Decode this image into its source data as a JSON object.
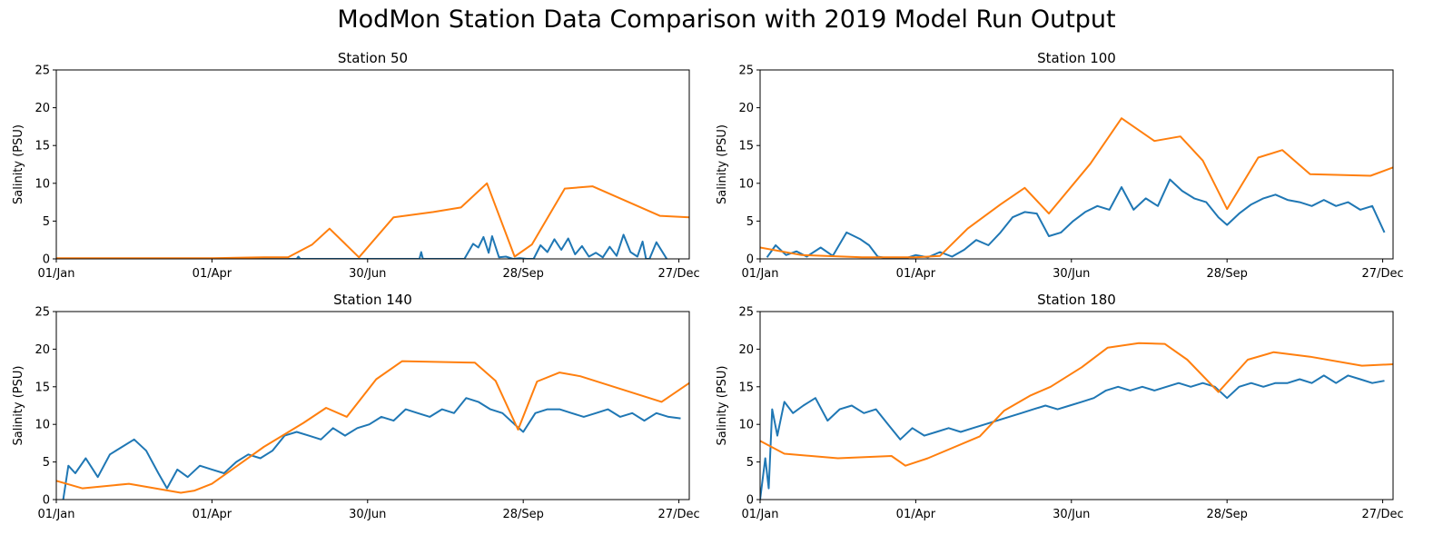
{
  "figure": {
    "title": "ModMon Station Data Comparison with 2019 Model Run Output"
  },
  "colors": {
    "observed": "#1f77b4",
    "model": "#ff7f0e",
    "axes": "#000000",
    "background": "#ffffff"
  },
  "chart_data": [
    {
      "type": "line",
      "title": "Station 50",
      "xlabel": "",
      "ylabel": "Salinity (PSU)",
      "xlim": [
        "2019-01-01",
        "2020-01-02"
      ],
      "ylim": [
        0,
        25
      ],
      "yticks": [
        0,
        5,
        10,
        15,
        20,
        25
      ],
      "xtick_labels": [
        "01/Jan",
        "01/Apr",
        "30/Jun",
        "28/Sep",
        "27/Dec"
      ],
      "grid": false,
      "series": [
        {
          "color": "#1f77b4",
          "x": [
            "2019-01-01",
            "2019-02-10",
            "2019-03-20",
            "2019-04-25",
            "2019-05-20",
            "2019-05-21",
            "2019-05-22",
            "2019-06-20",
            "2019-07-10",
            "2019-07-30",
            "2019-07-31",
            "2019-08-01",
            "2019-08-25",
            "2019-08-30",
            "2019-09-02",
            "2019-09-05",
            "2019-09-08",
            "2019-09-10",
            "2019-09-14",
            "2019-09-18",
            "2019-09-22",
            "2019-09-26",
            "2019-09-30",
            "2019-10-04",
            "2019-10-08",
            "2019-10-12",
            "2019-10-16",
            "2019-10-20",
            "2019-10-24",
            "2019-10-28",
            "2019-11-01",
            "2019-11-05",
            "2019-11-09",
            "2019-11-13",
            "2019-11-17",
            "2019-11-21",
            "2019-11-25",
            "2019-11-29",
            "2019-12-03",
            "2019-12-06",
            "2019-12-08",
            "2019-12-10",
            "2019-12-14",
            "2019-12-20"
          ],
          "y": [
            0,
            0,
            0,
            0,
            0,
            0.3,
            0,
            0,
            0,
            0,
            0.9,
            0,
            0,
            2.0,
            1.5,
            2.9,
            0.8,
            3.0,
            0.2,
            0.3,
            0,
            0.1,
            0,
            0,
            1.8,
            0.9,
            2.6,
            1.2,
            2.7,
            0.6,
            1.7,
            0.3,
            0.8,
            0.2,
            1.6,
            0.4,
            3.2,
            0.9,
            0.3,
            2.3,
            0,
            0,
            2.2,
            0
          ]
        },
        {
          "color": "#ff7f0e",
          "x": [
            "2019-01-01",
            "2019-02-15",
            "2019-04-01",
            "2019-05-01",
            "2019-05-15",
            "2019-05-29",
            "2019-06-08",
            "2019-06-25",
            "2019-07-15",
            "2019-08-07",
            "2019-08-23",
            "2019-09-07",
            "2019-09-23",
            "2019-10-03",
            "2019-10-22",
            "2019-11-07",
            "2019-12-16",
            "2020-01-02"
          ],
          "y": [
            0.1,
            0.1,
            0.1,
            0.2,
            0.2,
            1.9,
            4.0,
            0.2,
            5.5,
            6.2,
            6.8,
            10.0,
            0.3,
            1.9,
            9.3,
            9.6,
            5.7,
            5.5
          ]
        }
      ]
    },
    {
      "type": "line",
      "title": "Station 100",
      "xlabel": "",
      "ylabel": "Salinity (PSU)",
      "xlim": [
        "2019-01-01",
        "2020-01-02"
      ],
      "ylim": [
        0,
        25
      ],
      "yticks": [
        0,
        5,
        10,
        15,
        20,
        25
      ],
      "xtick_labels": [
        "01/Jan",
        "01/Apr",
        "30/Jun",
        "28/Sep",
        "27/Dec"
      ],
      "grid": false,
      "series": [
        {
          "color": "#1f77b4",
          "x": [
            "2019-01-05",
            "2019-01-10",
            "2019-01-16",
            "2019-01-22",
            "2019-01-28",
            "2019-02-05",
            "2019-02-12",
            "2019-02-20",
            "2019-02-28",
            "2019-03-05",
            "2019-03-10",
            "2019-03-18",
            "2019-03-25",
            "2019-04-01",
            "2019-04-08",
            "2019-04-15",
            "2019-04-22",
            "2019-04-29",
            "2019-05-06",
            "2019-05-13",
            "2019-05-20",
            "2019-05-27",
            "2019-06-03",
            "2019-06-10",
            "2019-06-17",
            "2019-06-24",
            "2019-07-01",
            "2019-07-08",
            "2019-07-15",
            "2019-07-22",
            "2019-07-29",
            "2019-08-05",
            "2019-08-12",
            "2019-08-19",
            "2019-08-26",
            "2019-09-02",
            "2019-09-09",
            "2019-09-16",
            "2019-09-23",
            "2019-09-28",
            "2019-10-05",
            "2019-10-12",
            "2019-10-19",
            "2019-10-26",
            "2019-11-02",
            "2019-11-09",
            "2019-11-16",
            "2019-11-23",
            "2019-11-30",
            "2019-12-07",
            "2019-12-14",
            "2019-12-21",
            "2019-12-28"
          ],
          "y": [
            0.2,
            1.8,
            0.5,
            1.0,
            0.3,
            1.5,
            0.4,
            3.5,
            2.6,
            1.8,
            0.3,
            0,
            0,
            0.5,
            0.2,
            0.9,
            0.3,
            1.2,
            2.5,
            1.8,
            3.5,
            5.5,
            6.2,
            6.0,
            3.0,
            3.5,
            5.0,
            6.2,
            7.0,
            6.5,
            9.5,
            6.5,
            8.0,
            7.0,
            10.5,
            9.0,
            8.0,
            7.5,
            5.5,
            4.5,
            6.0,
            7.2,
            8.0,
            8.5,
            7.8,
            7.5,
            7.0,
            7.8,
            7.0,
            7.5,
            6.5,
            7.0,
            3.5
          ]
        },
        {
          "color": "#ff7f0e",
          "x": [
            "2019-01-01",
            "2019-01-25",
            "2019-03-01",
            "2019-04-01",
            "2019-04-15",
            "2019-05-01",
            "2019-05-20",
            "2019-06-03",
            "2019-06-17",
            "2019-07-11",
            "2019-07-29",
            "2019-08-17",
            "2019-09-01",
            "2019-09-14",
            "2019-09-28",
            "2019-10-16",
            "2019-10-30",
            "2019-11-15",
            "2019-12-20",
            "2020-01-02"
          ],
          "y": [
            1.5,
            0.5,
            0.2,
            0.2,
            0.4,
            4.0,
            7.2,
            9.4,
            6.0,
            12.6,
            18.6,
            15.6,
            16.2,
            13.0,
            6.6,
            13.4,
            14.4,
            11.2,
            11.0,
            12.1
          ]
        }
      ]
    },
    {
      "type": "line",
      "title": "Station 140",
      "xlabel": "",
      "ylabel": "Salinity (PSU)",
      "xlim": [
        "2019-01-01",
        "2020-01-02"
      ],
      "ylim": [
        0,
        25
      ],
      "yticks": [
        0,
        5,
        10,
        15,
        20,
        25
      ],
      "xtick_labels": [
        "01/Jan",
        "01/Apr",
        "30/Jun",
        "28/Sep",
        "27/Dec"
      ],
      "grid": false,
      "series": [
        {
          "color": "#1f77b4",
          "x": [
            "2019-01-05",
            "2019-01-08",
            "2019-01-12",
            "2019-01-18",
            "2019-01-25",
            "2019-02-01",
            "2019-02-08",
            "2019-02-15",
            "2019-02-22",
            "2019-03-01",
            "2019-03-06",
            "2019-03-12",
            "2019-03-18",
            "2019-03-25",
            "2019-04-01",
            "2019-04-08",
            "2019-04-15",
            "2019-04-22",
            "2019-04-29",
            "2019-05-06",
            "2019-05-13",
            "2019-05-20",
            "2019-05-27",
            "2019-06-03",
            "2019-06-10",
            "2019-06-17",
            "2019-06-24",
            "2019-07-01",
            "2019-07-08",
            "2019-07-15",
            "2019-07-22",
            "2019-07-29",
            "2019-08-05",
            "2019-08-12",
            "2019-08-19",
            "2019-08-26",
            "2019-09-02",
            "2019-09-09",
            "2019-09-16",
            "2019-09-23",
            "2019-09-28",
            "2019-10-05",
            "2019-10-12",
            "2019-10-19",
            "2019-10-26",
            "2019-11-02",
            "2019-11-09",
            "2019-11-16",
            "2019-11-23",
            "2019-11-30",
            "2019-12-07",
            "2019-12-14",
            "2019-12-21",
            "2019-12-28"
          ],
          "y": [
            0,
            4.5,
            3.5,
            5.5,
            3.0,
            6.0,
            7.0,
            8.0,
            6.5,
            3.5,
            1.5,
            4.0,
            3.0,
            4.5,
            4.0,
            3.5,
            5.0,
            6.0,
            5.5,
            6.5,
            8.5,
            9.0,
            8.5,
            8.0,
            9.5,
            8.5,
            9.5,
            10.0,
            11.0,
            10.5,
            12.0,
            11.5,
            11.0,
            12.0,
            11.5,
            13.5,
            13.0,
            12.0,
            11.5,
            10.0,
            9.0,
            11.5,
            12.0,
            12.0,
            11.5,
            11.0,
            11.5,
            12.0,
            11.0,
            11.5,
            10.5,
            11.5,
            11.0,
            10.8
          ]
        },
        {
          "color": "#ff7f0e",
          "x": [
            "2019-01-01",
            "2019-01-16",
            "2019-02-12",
            "2019-03-14",
            "2019-03-22",
            "2019-04-01",
            "2019-05-01",
            "2019-05-24",
            "2019-06-06",
            "2019-06-18",
            "2019-07-05",
            "2019-07-20",
            "2019-08-31",
            "2019-09-12",
            "2019-09-25",
            "2019-10-06",
            "2019-10-19",
            "2019-10-31",
            "2019-12-17",
            "2020-01-02"
          ],
          "y": [
            2.5,
            1.5,
            2.1,
            0.9,
            1.2,
            2.1,
            7.0,
            10.2,
            12.2,
            11.0,
            16.0,
            18.4,
            18.2,
            15.8,
            9.3,
            15.7,
            16.9,
            16.4,
            13.0,
            15.5
          ]
        }
      ]
    },
    {
      "type": "line",
      "title": "Station 180",
      "xlabel": "",
      "ylabel": "Salinity (PSU)",
      "xlim": [
        "2019-01-01",
        "2020-01-02"
      ],
      "ylim": [
        0,
        25
      ],
      "yticks": [
        0,
        5,
        10,
        15,
        20,
        25
      ],
      "xtick_labels": [
        "01/Jan",
        "01/Apr",
        "30/Jun",
        "28/Sep",
        "27/Dec"
      ],
      "grid": false,
      "series": [
        {
          "color": "#1f77b4",
          "x": [
            "2019-01-01",
            "2019-01-04",
            "2019-01-06",
            "2019-01-08",
            "2019-01-11",
            "2019-01-15",
            "2019-01-20",
            "2019-01-26",
            "2019-02-02",
            "2019-02-09",
            "2019-02-16",
            "2019-02-23",
            "2019-03-02",
            "2019-03-09",
            "2019-03-16",
            "2019-03-23",
            "2019-03-30",
            "2019-04-06",
            "2019-04-13",
            "2019-04-20",
            "2019-04-27",
            "2019-05-04",
            "2019-05-11",
            "2019-05-18",
            "2019-05-25",
            "2019-06-01",
            "2019-06-08",
            "2019-06-15",
            "2019-06-22",
            "2019-06-29",
            "2019-07-06",
            "2019-07-13",
            "2019-07-20",
            "2019-07-27",
            "2019-08-03",
            "2019-08-10",
            "2019-08-17",
            "2019-08-24",
            "2019-08-31",
            "2019-09-07",
            "2019-09-14",
            "2019-09-21",
            "2019-09-28",
            "2019-10-05",
            "2019-10-12",
            "2019-10-19",
            "2019-10-26",
            "2019-11-02",
            "2019-11-09",
            "2019-11-16",
            "2019-11-23",
            "2019-11-30",
            "2019-12-07",
            "2019-12-14",
            "2019-12-21",
            "2019-12-28"
          ],
          "y": [
            0,
            5.5,
            1.5,
            12.0,
            8.5,
            13.0,
            11.5,
            12.5,
            13.5,
            10.5,
            12.0,
            12.5,
            11.5,
            12.0,
            10.0,
            8.0,
            9.5,
            8.5,
            9.0,
            9.5,
            9.0,
            9.5,
            10.0,
            10.5,
            11.0,
            11.5,
            12.0,
            12.5,
            12.0,
            12.5,
            13.0,
            13.5,
            14.5,
            15.0,
            14.5,
            15.0,
            14.5,
            15.0,
            15.5,
            15.0,
            15.5,
            15.0,
            13.5,
            15.0,
            15.5,
            15.0,
            15.5,
            15.5,
            16.0,
            15.5,
            16.5,
            15.5,
            16.5,
            16.0,
            15.5,
            15.8
          ]
        },
        {
          "color": "#ff7f0e",
          "x": [
            "2019-01-01",
            "2019-01-15",
            "2019-02-15",
            "2019-03-18",
            "2019-03-26",
            "2019-04-08",
            "2019-05-08",
            "2019-05-22",
            "2019-06-06",
            "2019-06-18",
            "2019-07-06",
            "2019-07-21",
            "2019-08-08",
            "2019-08-23",
            "2019-09-05",
            "2019-09-23",
            "2019-10-10",
            "2019-10-25",
            "2019-11-15",
            "2019-12-15",
            "2020-01-02"
          ],
          "y": [
            7.8,
            6.1,
            5.5,
            5.8,
            4.5,
            5.5,
            8.4,
            11.8,
            13.8,
            15.0,
            17.6,
            20.2,
            20.8,
            20.7,
            18.6,
            14.3,
            18.6,
            19.6,
            19.0,
            17.8,
            18.0
          ]
        }
      ]
    }
  ]
}
